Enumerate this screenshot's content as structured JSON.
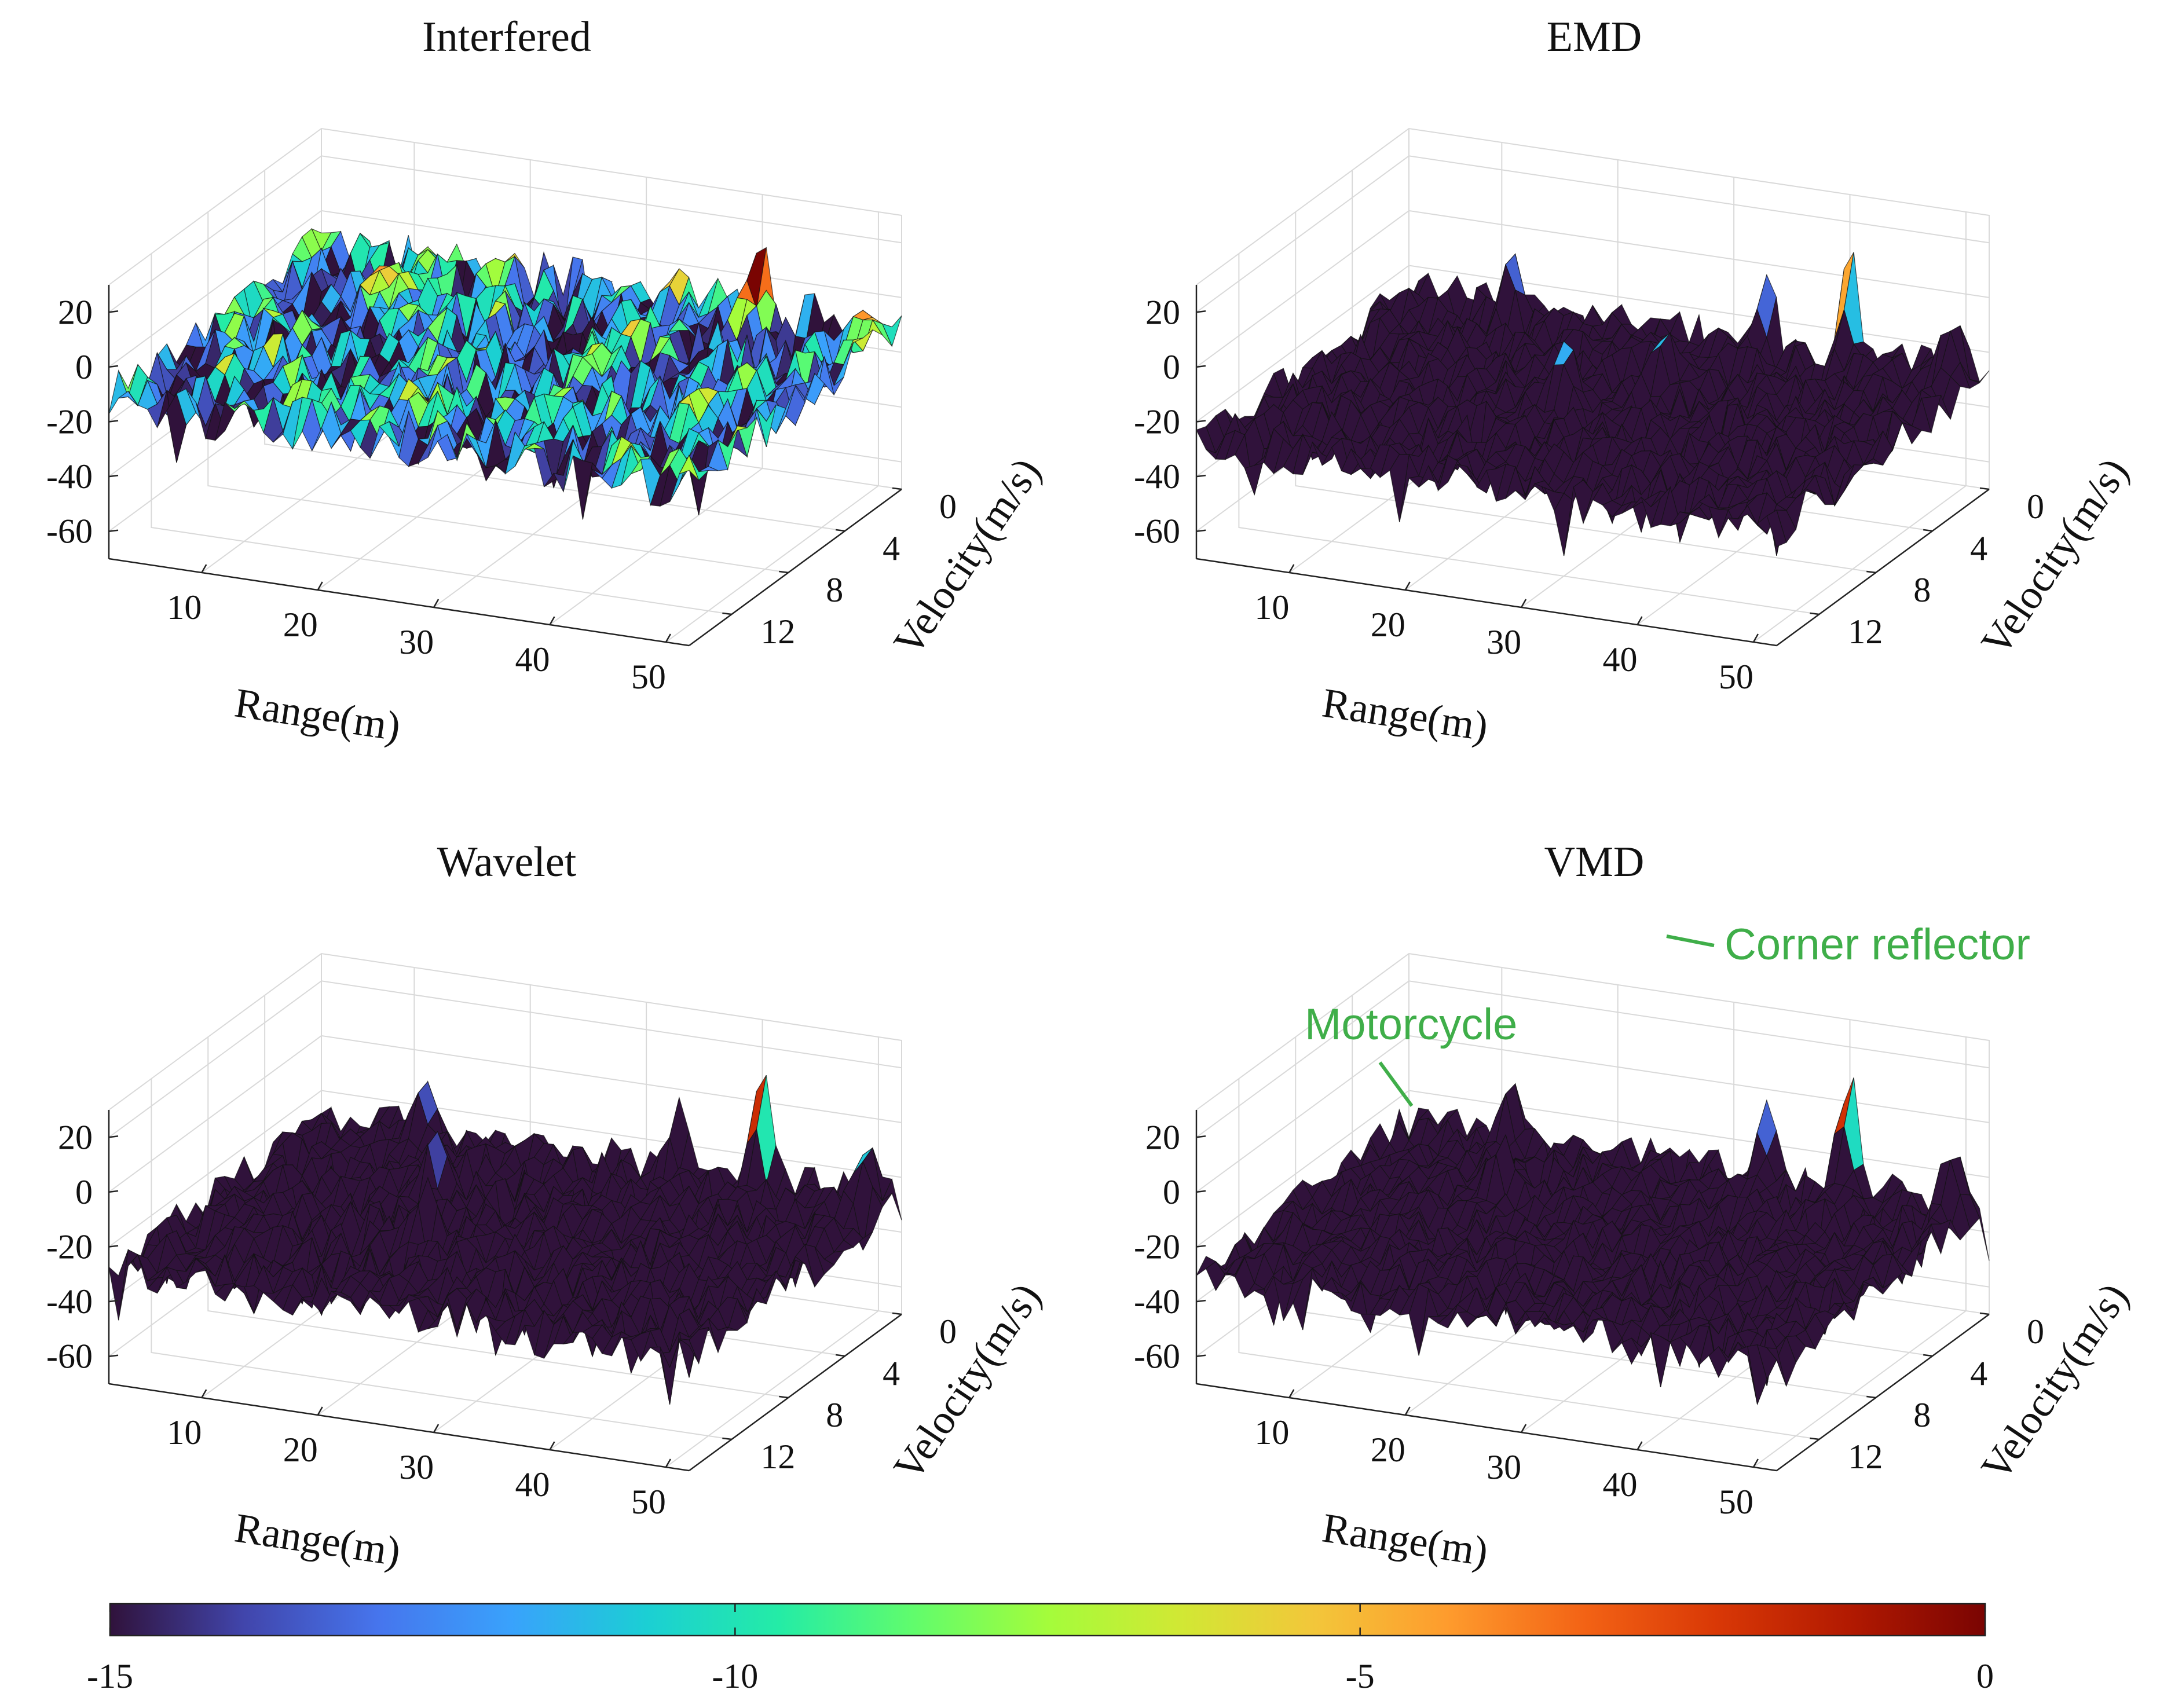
{
  "chart_data": [
    {
      "type": "surface",
      "title": "Interfered",
      "xlabel": "Range(m)",
      "ylabel": "Velocity(m/s)",
      "xticks": [
        "10",
        "20",
        "30",
        "40",
        "50"
      ],
      "yticks": [
        "0",
        "4",
        "8",
        "12"
      ],
      "zticks": [
        "20",
        "0",
        "-20",
        "-40",
        "-60"
      ],
      "xlim": [
        2,
        52
      ],
      "ylim": [
        0,
        15
      ],
      "zlim": [
        -70,
        30
      ],
      "noise_floor_db": -12,
      "noise_spread_db": 18,
      "peaks": [
        {
          "range_m": 40,
          "velocity_mps": 0,
          "height_db": 15
        },
        {
          "range_m": 33,
          "velocity_mps": 0,
          "height_db": -1
        },
        {
          "range_m": 12,
          "velocity_mps": 1,
          "height_db": -5
        },
        {
          "range_m": 50,
          "velocity_mps": 1,
          "height_db": -3
        },
        {
          "range_m": 52,
          "velocity_mps": 2,
          "height_db": -4
        }
      ],
      "annotations": []
    },
    {
      "type": "surface",
      "title": "EMD",
      "xlabel": "Range(m)",
      "ylabel": "Velocity(m/s)",
      "xticks": [
        "10",
        "20",
        "30",
        "40",
        "50"
      ],
      "yticks": [
        "0",
        "4",
        "8",
        "12"
      ],
      "zticks": [
        "20",
        "0",
        "-20",
        "-40",
        "-60"
      ],
      "xlim": [
        2,
        52
      ],
      "ylim": [
        0,
        15
      ],
      "zlim": [
        -70,
        30
      ],
      "noise_floor_db": -28,
      "noise_spread_db": 14,
      "peaks": [
        {
          "range_m": 40,
          "velocity_mps": 0,
          "height_db": 15
        },
        {
          "range_m": 33,
          "velocity_mps": 0,
          "height_db": -3
        },
        {
          "range_m": 30,
          "velocity_mps": 5,
          "height_db": -4
        },
        {
          "range_m": 24,
          "velocity_mps": 7,
          "height_db": -3
        },
        {
          "range_m": 12,
          "velocity_mps": 1,
          "height_db": -5
        },
        {
          "range_m": 50,
          "velocity_mps": 1,
          "height_db": -3
        }
      ],
      "annotations": []
    },
    {
      "type": "surface",
      "title": "Wavelet",
      "xlabel": "Range(m)",
      "ylabel": "Velocity(m/s)",
      "xticks": [
        "10",
        "20",
        "30",
        "40",
        "50"
      ],
      "yticks": [
        "0",
        "4",
        "8",
        "12"
      ],
      "zticks": [
        "20",
        "0",
        "-20",
        "-40",
        "-60"
      ],
      "xlim": [
        2,
        52
      ],
      "ylim": [
        0,
        15
      ],
      "zlim": [
        -70,
        30
      ],
      "noise_floor_db": -28,
      "noise_spread_db": 14,
      "peaks": [
        {
          "range_m": 40,
          "velocity_mps": 0,
          "height_db": 15
        },
        {
          "range_m": 33,
          "velocity_mps": 0,
          "height_db": -2
        },
        {
          "range_m": 18,
          "velocity_mps": 5,
          "height_db": -4
        },
        {
          "range_m": 22,
          "velocity_mps": 9,
          "height_db": -5
        },
        {
          "range_m": 12,
          "velocity_mps": 1,
          "height_db": -5
        },
        {
          "range_m": 50,
          "velocity_mps": 1,
          "height_db": -3
        }
      ],
      "annotations": []
    },
    {
      "type": "surface",
      "title": "VMD",
      "xlabel": "Range(m)",
      "ylabel": "Velocity(m/s)",
      "xticks": [
        "10",
        "20",
        "30",
        "40",
        "50"
      ],
      "yticks": [
        "0",
        "4",
        "8",
        "12"
      ],
      "zticks": [
        "20",
        "0",
        "-20",
        "-40",
        "-60"
      ],
      "xlim": [
        2,
        52
      ],
      "ylim": [
        0,
        15
      ],
      "zlim": [
        -70,
        30
      ],
      "noise_floor_db": -30,
      "noise_spread_db": 12,
      "peaks": [
        {
          "range_m": 40,
          "velocity_mps": 0,
          "height_db": 15
        },
        {
          "range_m": 33,
          "velocity_mps": 0,
          "height_db": -3
        },
        {
          "range_m": 12,
          "velocity_mps": 1,
          "height_db": -6
        },
        {
          "range_m": 16,
          "velocity_mps": 5,
          "height_db": -7
        },
        {
          "range_m": 50,
          "velocity_mps": 1,
          "height_db": -4
        }
      ],
      "annotations": [
        {
          "text": "Corner reflector",
          "color": "#3fae49"
        },
        {
          "text": "Motorcycle",
          "color": "#3fae49"
        }
      ]
    }
  ],
  "colorbar": {
    "range": [
      -15,
      0
    ],
    "ticks": [
      "-15",
      "-10",
      "-5",
      "0"
    ],
    "colormap": [
      "#30123b",
      "#4145ab",
      "#4675ed",
      "#39a2fc",
      "#1bcfd4",
      "#24eca6",
      "#61fc6c",
      "#a4fc3b",
      "#d1e834",
      "#f3c63a",
      "#fe9b2d",
      "#f36315",
      "#d93806",
      "#b11901",
      "#7a0402"
    ]
  }
}
